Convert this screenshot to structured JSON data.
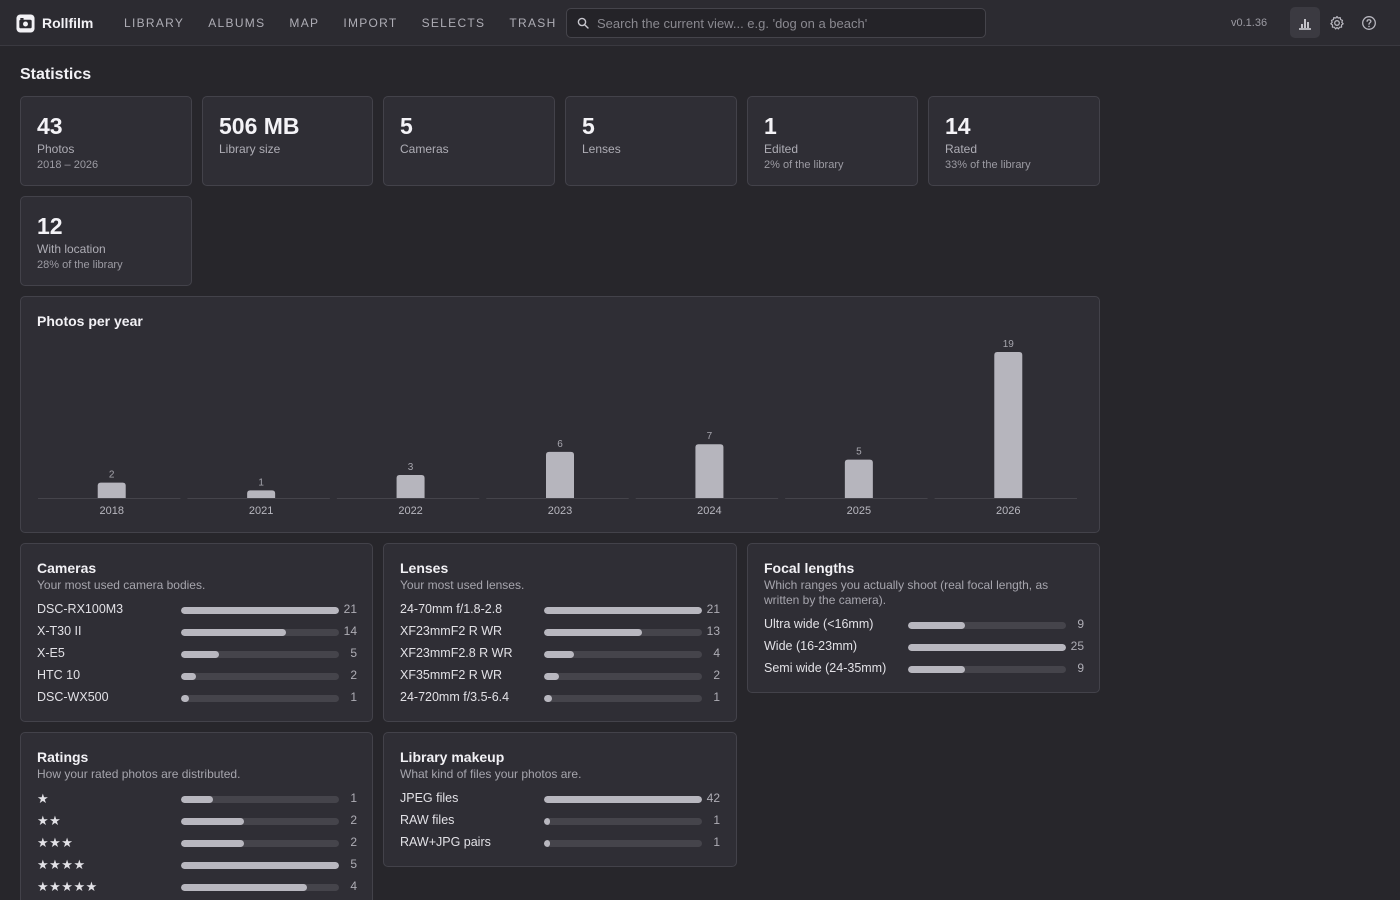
{
  "app": {
    "name": "Rollfilm",
    "version": "v0.1.36"
  },
  "nav": [
    "LIBRARY",
    "ALBUMS",
    "MAP",
    "IMPORT",
    "SELECTS",
    "TRASH"
  ],
  "search": {
    "placeholder": "Search the current view... e.g. 'dog on a beach'",
    "value": ""
  },
  "icons": {
    "brand": "camera-logo-icon",
    "search": "search-icon",
    "stats": "bar-chart-icon",
    "settings": "gear-icon",
    "help": "help-icon"
  },
  "page": {
    "title": "Statistics"
  },
  "stats": [
    {
      "value": "43",
      "label": "Photos",
      "sub": "2018 – 2026"
    },
    {
      "value": "506 MB",
      "label": "Library size",
      "sub": ""
    },
    {
      "value": "5",
      "label": "Cameras",
      "sub": ""
    },
    {
      "value": "5",
      "label": "Lenses",
      "sub": ""
    },
    {
      "value": "1",
      "label": "Edited",
      "sub": "2% of the library"
    },
    {
      "value": "14",
      "label": "Rated",
      "sub": "33% of the library"
    },
    {
      "value": "12",
      "label": "With location",
      "sub": "28% of the library"
    }
  ],
  "chart_data": {
    "type": "bar",
    "title": "Photos per year",
    "categories": [
      "2018",
      "2021",
      "2022",
      "2023",
      "2024",
      "2025",
      "2026"
    ],
    "values": [
      2,
      1,
      3,
      6,
      7,
      5,
      19
    ],
    "ylim": [
      0,
      19
    ],
    "grid": false,
    "legend": "none",
    "bar_color": "#b6b5bd"
  },
  "panels": {
    "cameras": {
      "title": "Cameras",
      "desc": "Your most used camera bodies.",
      "rows": [
        {
          "label": "DSC-RX100M3",
          "count": 21,
          "fraction": 1.0
        },
        {
          "label": "X-T30 II",
          "count": 14,
          "fraction": 0.667
        },
        {
          "label": "X-E5",
          "count": 5,
          "fraction": 0.238
        },
        {
          "label": "HTC 10",
          "count": 2,
          "fraction": 0.095
        },
        {
          "label": "DSC-WX500",
          "count": 1,
          "fraction": 0.048
        }
      ]
    },
    "lenses": {
      "title": "Lenses",
      "desc": "Your most used lenses.",
      "rows": [
        {
          "label": "24-70mm f/1.8-2.8",
          "count": 21,
          "fraction": 1.0
        },
        {
          "label": "XF23mmF2 R WR",
          "count": 13,
          "fraction": 0.619
        },
        {
          "label": "XF23mmF2.8 R WR",
          "count": 4,
          "fraction": 0.19
        },
        {
          "label": "XF35mmF2 R WR",
          "count": 2,
          "fraction": 0.095
        },
        {
          "label": "24-720mm f/3.5-6.4",
          "count": 1,
          "fraction": 0.048
        }
      ]
    },
    "focal": {
      "title": "Focal lengths",
      "desc": "Which ranges you actually shoot (real focal length, as written by the camera).",
      "rows": [
        {
          "label": "Ultra wide (<16mm)",
          "count": 9,
          "fraction": 0.36
        },
        {
          "label": "Wide (16-23mm)",
          "count": 25,
          "fraction": 1.0
        },
        {
          "label": "Semi wide (24-35mm)",
          "count": 9,
          "fraction": 0.36
        }
      ]
    },
    "ratings": {
      "title": "Ratings",
      "desc": "How your rated photos are distributed.",
      "rows": [
        {
          "label": "★",
          "count": 1,
          "fraction": 0.2
        },
        {
          "label": "★★",
          "count": 2,
          "fraction": 0.4
        },
        {
          "label": "★★★",
          "count": 2,
          "fraction": 0.4
        },
        {
          "label": "★★★★",
          "count": 5,
          "fraction": 1.0
        },
        {
          "label": "★★★★★",
          "count": 4,
          "fraction": 0.8
        }
      ]
    },
    "makeup": {
      "title": "Library makeup",
      "desc": "What kind of files your photos are.",
      "rows": [
        {
          "label": "JPEG files",
          "count": 42,
          "fraction": 1.0
        },
        {
          "label": "RAW files",
          "count": 1,
          "fraction": 0.024
        },
        {
          "label": "RAW+JPG pairs",
          "count": 1,
          "fraction": 0.024
        }
      ]
    }
  }
}
